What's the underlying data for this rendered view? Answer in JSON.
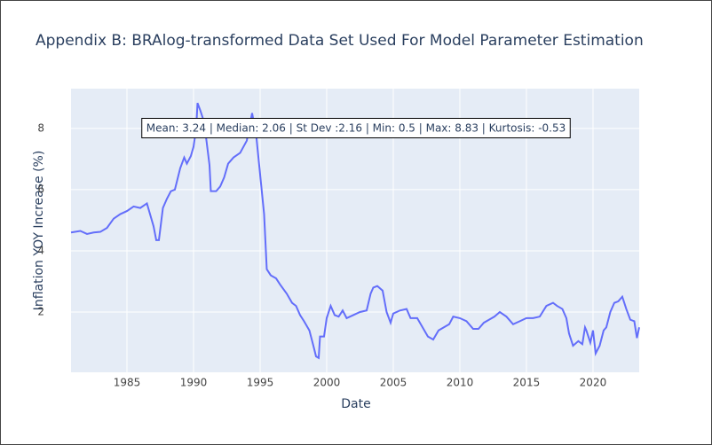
{
  "chart_data": {
    "type": "line",
    "title": "Appendix B: BRAlog-transformed Data Set Used For Model Parameter Estimation",
    "x_label": "Date",
    "y_label": "Inflation YOY Increase (%)",
    "annotation": "Mean: 3.24 | Median: 2.06 | St Dev :2.16 | Min: 0.5 | Max: 8.83 | Kurtosis: -0.53",
    "xlim": [
      1980.8,
      2023.47
    ],
    "ylim": [
      0.03,
      9.3
    ],
    "xticks": [
      1985,
      1990,
      1995,
      2000,
      2005,
      2010,
      2015,
      2020
    ],
    "yticks": [
      2,
      4,
      6,
      8
    ],
    "grid": true,
    "series": [
      {
        "color": "#636efa",
        "x": [
          1980.8,
          1981.5,
          1982,
          1982.5,
          1983,
          1983.5,
          1984,
          1984.5,
          1985,
          1985.5,
          1986,
          1986.5,
          1987,
          1987.2,
          1987.4,
          1987.7,
          1988,
          1988.3,
          1988.6,
          1989,
          1989.3,
          1989.5,
          1989.8,
          1990,
          1990.2,
          1990.3,
          1990.5,
          1990.8,
          1991.2,
          1991.3,
          1991.7,
          1992,
          1992.3,
          1992.6,
          1993,
          1993.5,
          1994,
          1994.4,
          1994.7,
          1995,
          1995.3,
          1995.5,
          1995.8,
          1996.2,
          1996.5,
          1997,
          1997.4,
          1997.7,
          1998,
          1998.3,
          1998.7,
          1999,
          1999.2,
          1999.4,
          1999.5,
          1999.8,
          2000,
          2000.3,
          2000.6,
          2000.9,
          2001.2,
          2001.5,
          2002,
          2002.5,
          2003,
          2003.3,
          2003.5,
          2003.8,
          2004.2,
          2004.5,
          2004.8,
          2005,
          2005.5,
          2006,
          2006.3,
          2006.8,
          2007.2,
          2007.6,
          2008,
          2008.4,
          2008.8,
          2009.2,
          2009.5,
          2010,
          2010.5,
          2011,
          2011.4,
          2011.8,
          2012.2,
          2012.6,
          2013,
          2013.5,
          2014,
          2014.5,
          2015,
          2015.5,
          2016,
          2016.5,
          2017,
          2017.3,
          2017.7,
          2018,
          2018.2,
          2018.5,
          2018.9,
          2019.2,
          2019.4,
          2019.5,
          2019.8,
          2020,
          2020.2,
          2020.5,
          2020.8,
          2021,
          2021.3,
          2021.6,
          2021.9,
          2022.2,
          2022.5,
          2022.8,
          2023.1,
          2023.3,
          2023.47
        ],
        "values": [
          4.6,
          4.65,
          4.55,
          4.6,
          4.62,
          4.75,
          5.05,
          5.2,
          5.3,
          5.45,
          5.4,
          5.55,
          4.8,
          4.35,
          4.35,
          5.4,
          5.7,
          5.95,
          6.0,
          6.7,
          7.05,
          6.85,
          7.1,
          7.4,
          8.0,
          8.83,
          8.6,
          8.2,
          6.8,
          5.95,
          5.95,
          6.1,
          6.4,
          6.85,
          7.05,
          7.2,
          7.6,
          8.5,
          7.8,
          6.5,
          5.2,
          3.4,
          3.2,
          3.1,
          2.9,
          2.6,
          2.3,
          2.2,
          1.9,
          1.7,
          1.4,
          0.9,
          0.55,
          0.5,
          1.2,
          1.2,
          1.8,
          2.2,
          1.9,
          1.85,
          2.05,
          1.8,
          1.9,
          2.0,
          2.05,
          2.6,
          2.8,
          2.85,
          2.7,
          2.0,
          1.65,
          1.95,
          2.05,
          2.1,
          1.8,
          1.8,
          1.5,
          1.2,
          1.1,
          1.4,
          1.5,
          1.6,
          1.85,
          1.8,
          1.7,
          1.45,
          1.45,
          1.65,
          1.75,
          1.85,
          2.0,
          1.85,
          1.6,
          1.7,
          1.8,
          1.8,
          1.85,
          2.2,
          2.3,
          2.2,
          2.1,
          1.8,
          1.3,
          0.9,
          1.05,
          0.95,
          1.5,
          1.4,
          1.0,
          1.4,
          0.65,
          0.9,
          1.4,
          1.5,
          2.0,
          2.3,
          2.35,
          2.5,
          2.1,
          1.75,
          1.7,
          1.15,
          1.5
        ]
      }
    ]
  }
}
